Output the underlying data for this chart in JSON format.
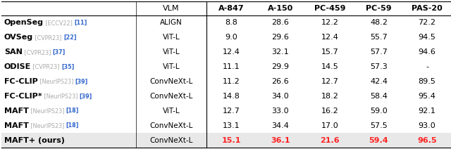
{
  "title_row": [
    "",
    "VLM",
    "A-847",
    "A-150",
    "PC-459",
    "PC-59",
    "PAS-20"
  ],
  "rows": [
    {
      "method_main": "OpenSeg",
      "method_venue": " [ECCV22] ",
      "method_ref": "[11]",
      "vlm": "ALIGN",
      "values": [
        "8.8",
        "28.6",
        "12.2",
        "48.2",
        "72.2"
      ],
      "highlight": [
        false,
        false,
        false,
        false,
        false
      ]
    },
    {
      "method_main": "OVSeg",
      "method_venue": " [CVPR23] ",
      "method_ref": "[22]",
      "vlm": "ViT-L",
      "values": [
        "9.0",
        "29.6",
        "12.4",
        "55.7",
        "94.5"
      ],
      "highlight": [
        false,
        false,
        false,
        false,
        false
      ]
    },
    {
      "method_main": "SAN",
      "method_venue": " [CVPR23] ",
      "method_ref": "[37]",
      "vlm": "ViT-L",
      "values": [
        "12.4",
        "32.1",
        "15.7",
        "57.7",
        "94.6"
      ],
      "highlight": [
        false,
        false,
        false,
        false,
        false
      ]
    },
    {
      "method_main": "ODISE",
      "method_venue": " [CVPR23] ",
      "method_ref": "[35]",
      "vlm": "ViT-L",
      "values": [
        "11.1",
        "29.9",
        "14.5",
        "57.3",
        "-"
      ],
      "highlight": [
        false,
        false,
        false,
        false,
        false
      ]
    },
    {
      "method_main": "FC-CLIP",
      "method_venue": " [NeurIPS23] ",
      "method_ref": "[39]",
      "vlm": "ConvNeXt-L",
      "values": [
        "11.2",
        "26.6",
        "12.7",
        "42.4",
        "89.5"
      ],
      "highlight": [
        false,
        false,
        false,
        false,
        false
      ]
    },
    {
      "method_main": "FC-CLIP*",
      "method_venue": " [NeurIPS23] ",
      "method_ref": "[39]",
      "vlm": "ConvNeXt-L",
      "values": [
        "14.8",
        "34.0",
        "18.2",
        "58.4",
        "95.4"
      ],
      "highlight": [
        false,
        false,
        false,
        false,
        false
      ]
    },
    {
      "method_main": "MAFT",
      "method_venue": " [NeurIPS23] ",
      "method_ref": "[18]",
      "vlm": "ViT-L",
      "values": [
        "12.7",
        "33.0",
        "16.2",
        "59.0",
        "92.1"
      ],
      "highlight": [
        false,
        false,
        false,
        false,
        false
      ]
    },
    {
      "method_main": "MAFT",
      "method_venue": " [NeurIPS23] ",
      "method_ref": "[18]",
      "vlm": "ConvNeXt-L",
      "values": [
        "13.1",
        "34.4",
        "17.0",
        "57.5",
        "93.0"
      ],
      "highlight": [
        false,
        false,
        false,
        false,
        false
      ]
    },
    {
      "method_main": "MAFT+ (ours)",
      "method_venue": "",
      "method_ref": "",
      "vlm": "ConvNeXt-L",
      "values": [
        "15.1",
        "36.1",
        "21.6",
        "59.4",
        "96.5"
      ],
      "highlight": [
        true,
        true,
        true,
        true,
        true
      ]
    }
  ],
  "highlight_color": "#ff2222",
  "normal_color": "#000000",
  "venue_color": "#aaaaaa",
  "ref_color": "#3366cc",
  "gray_bg": "#e8e8e8",
  "metric_headers": [
    "A-847",
    "A-150",
    "PC-459",
    "PC-59",
    "PAS-20"
  ]
}
